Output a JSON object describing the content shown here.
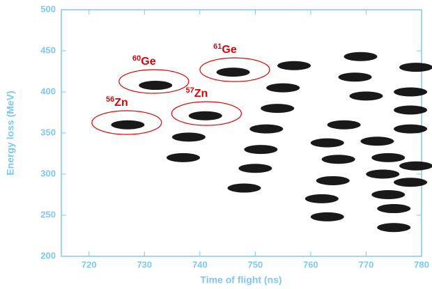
{
  "chart_data": {
    "type": "scatter",
    "x_label": "Time of flight (ns)",
    "y_label": "Energy loss (MeV)",
    "xlim": [
      715,
      780
    ],
    "xticks": [
      720,
      730,
      740,
      750,
      760,
      770,
      780
    ],
    "ylim": [
      200,
      500
    ],
    "yticks": [
      200,
      250,
      300,
      350,
      400,
      450,
      500
    ],
    "color": "#000000",
    "x": [
      727,
      732,
      741,
      746,
      738,
      737,
      752,
      751,
      750,
      748,
      754,
      755,
      757,
      763,
      765,
      764,
      762,
      763,
      766,
      768,
      769,
      770,
      772,
      774,
      773,
      774,
      775,
      775,
      778,
      778,
      779,
      778,
      779,
      778
    ],
    "y": [
      360,
      408,
      371,
      424,
      345,
      320,
      355,
      330,
      307,
      283,
      380,
      405,
      432,
      338,
      318,
      292,
      270,
      248,
      360,
      418,
      443,
      395,
      340,
      320,
      300,
      275,
      258,
      235,
      378,
      400,
      430,
      355,
      310,
      290
    ],
    "annotations": [
      {
        "mass": "60",
        "element": "Ge",
        "x": 731.7,
        "y": 412.7,
        "color": "#e00000"
      },
      {
        "mass": "61",
        "element": "Ge",
        "x": 746.3,
        "y": 427,
        "color": "#e00000"
      },
      {
        "mass": "57",
        "element": "Zn",
        "x": 741.2,
        "y": 373.7,
        "color": "#e00000"
      },
      {
        "mass": "56",
        "element": "Zn",
        "x": 726.8,
        "y": 362.7,
        "color": "#e00000"
      }
    ]
  }
}
